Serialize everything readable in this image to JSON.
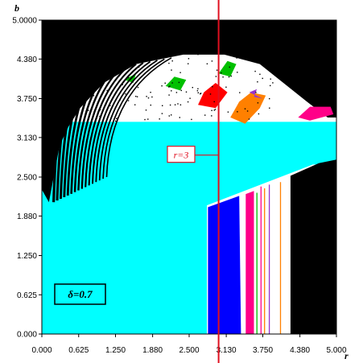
{
  "chart_data": {
    "type": "heatmap",
    "title": "",
    "xlabel": "r",
    "ylabel": "b",
    "xlim": [
      0,
      5
    ],
    "ylim": [
      0,
      5
    ],
    "x_ticks": [
      "0.000",
      "0.625",
      "1.250",
      "1.880",
      "2.500",
      "3.130",
      "3.750",
      "4.380",
      "5.000"
    ],
    "y_ticks": [
      "0.000",
      "0.625",
      "1.250",
      "1.880",
      "2.500",
      "3.130",
      "3.750",
      "4.380",
      "5.0000"
    ],
    "x_tick_values": [
      0,
      0.625,
      1.25,
      1.88,
      2.5,
      3.13,
      3.75,
      4.38,
      5.0
    ],
    "y_tick_values": [
      0,
      0.625,
      1.25,
      1.88,
      2.5,
      3.13,
      3.75,
      4.38,
      5.0
    ],
    "vertical_line": {
      "r": 3,
      "label": "r=3",
      "label_b": 2.85,
      "color": "#e01020"
    },
    "parameter_label": "δ=0.7",
    "colors": {
      "background": "#ffffff",
      "cyan": "#00ffff",
      "black": "#000000",
      "blue": "#0000ff",
      "magenta": "#ff0088",
      "green": "#00c000",
      "red": "#ff0000",
      "purple": "#9933cc",
      "orange": "#ff8000",
      "grey": "#888888"
    },
    "regions": [
      {
        "name": "cyan-basin",
        "color": "cyan",
        "polygon": [
          [
            0,
            0
          ],
          [
            0,
            3.38
          ],
          [
            5,
            3.38
          ],
          [
            5,
            2.7
          ],
          [
            4.6,
            2.7
          ],
          [
            2.8,
            2.05
          ],
          [
            2.8,
            0
          ]
        ]
      },
      {
        "name": "cyan-strip-upper-left",
        "color": "cyan",
        "polygon": [
          [
            0,
            3.38
          ],
          [
            0.05,
            3.38
          ],
          [
            0.05,
            4.5
          ],
          [
            0,
            4.5
          ]
        ]
      },
      {
        "name": "blue-band",
        "color": "blue",
        "polygon": [
          [
            2.82,
            0
          ],
          [
            2.82,
            2.02
          ],
          [
            3.35,
            2.2
          ],
          [
            3.38,
            0
          ]
        ]
      },
      {
        "name": "magenta-band",
        "color": "magenta",
        "polygon": [
          [
            3.46,
            0
          ],
          [
            3.46,
            2.23
          ],
          [
            3.6,
            2.28
          ],
          [
            3.6,
            0
          ]
        ]
      },
      {
        "name": "black-right",
        "color": "black",
        "polygon": [
          [
            4.22,
            0
          ],
          [
            4.22,
            2.52
          ],
          [
            4.7,
            2.72
          ],
          [
            5,
            2.78
          ],
          [
            5,
            0
          ]
        ]
      },
      {
        "name": "black-top-cap",
        "color": "black",
        "polygon": [
          [
            0,
            5
          ],
          [
            5,
            5
          ],
          [
            5,
            3.45
          ],
          [
            4.85,
            3.45
          ],
          [
            4.5,
            3.7
          ],
          [
            4.1,
            4.0
          ],
          [
            3.7,
            4.3
          ],
          [
            3.1,
            4.45
          ],
          [
            2.4,
            4.45
          ],
          [
            1.6,
            4.3
          ],
          [
            1.05,
            4.0
          ],
          [
            0.65,
            3.6
          ],
          [
            0.45,
            3.3
          ],
          [
            0.3,
            3.0
          ],
          [
            0.18,
            2.4
          ],
          [
            0.12,
            2.1
          ],
          [
            0,
            2.3
          ]
        ]
      },
      {
        "name": "black-right-shoulder",
        "color": "black",
        "polygon": [
          [
            3.65,
            4.4
          ],
          [
            4.1,
            4.6
          ],
          [
            4.4,
            4.3
          ],
          [
            4.85,
            3.45
          ],
          [
            5,
            3.45
          ],
          [
            5,
            4.7
          ],
          [
            3.9,
            4.7
          ]
        ]
      },
      {
        "name": "red-lobe",
        "color": "red",
        "polygon": [
          [
            2.65,
            3.65
          ],
          [
            2.95,
            3.6
          ],
          [
            3.15,
            3.85
          ],
          [
            2.95,
            4.0
          ],
          [
            2.75,
            3.85
          ]
        ]
      },
      {
        "name": "orange-lobe",
        "color": "orange",
        "polygon": [
          [
            3.2,
            3.45
          ],
          [
            3.45,
            3.35
          ],
          [
            3.7,
            3.6
          ],
          [
            3.8,
            3.8
          ],
          [
            3.55,
            3.85
          ],
          [
            3.35,
            3.7
          ]
        ]
      },
      {
        "name": "purple-lobe",
        "color": "purple",
        "polygon": [
          [
            3.52,
            3.85
          ],
          [
            3.65,
            3.9
          ],
          [
            3.6,
            3.78
          ],
          [
            3.75,
            3.75
          ]
        ]
      },
      {
        "name": "magenta-lobe",
        "color": "magenta",
        "polygon": [
          [
            4.35,
            3.45
          ],
          [
            4.55,
            3.4
          ],
          [
            4.95,
            3.5
          ],
          [
            4.9,
            3.62
          ],
          [
            4.55,
            3.62
          ]
        ]
      },
      {
        "name": "green-lobe-1",
        "color": "green",
        "polygon": [
          [
            2.1,
            3.95
          ],
          [
            2.35,
            3.88
          ],
          [
            2.45,
            4.05
          ],
          [
            2.25,
            4.1
          ]
        ]
      },
      {
        "name": "green-lobe-2",
        "color": "green",
        "polygon": [
          [
            3.0,
            4.15
          ],
          [
            3.2,
            4.1
          ],
          [
            3.3,
            4.3
          ],
          [
            3.15,
            4.35
          ]
        ]
      },
      {
        "name": "green-lobe-3",
        "color": "green",
        "polygon": [
          [
            1.4,
            4.05
          ],
          [
            1.55,
            4.0
          ],
          [
            1.6,
            4.15
          ]
        ]
      }
    ],
    "vertical_streaks": [
      {
        "r": 3.72,
        "b_top": 2.35,
        "color": "magenta"
      },
      {
        "r": 3.78,
        "b_top": 2.32,
        "color": "orange"
      },
      {
        "r": 3.86,
        "b_top": 2.38,
        "color": "purple"
      },
      {
        "r": 4.05,
        "b_top": 2.42,
        "color": "orange"
      },
      {
        "r": 3.65,
        "b_top": 2.25,
        "color": "green"
      }
    ],
    "stripes": {
      "count": 16,
      "color": "black",
      "base_r": 0.2,
      "base_b": 2.1,
      "spread_r": 1.8,
      "top_b": 4.1
    },
    "scatter_points": {
      "color": "black",
      "b_min": 3.4,
      "b_max": 4.5,
      "r_min": 0.7,
      "r_max": 4.0
    }
  }
}
